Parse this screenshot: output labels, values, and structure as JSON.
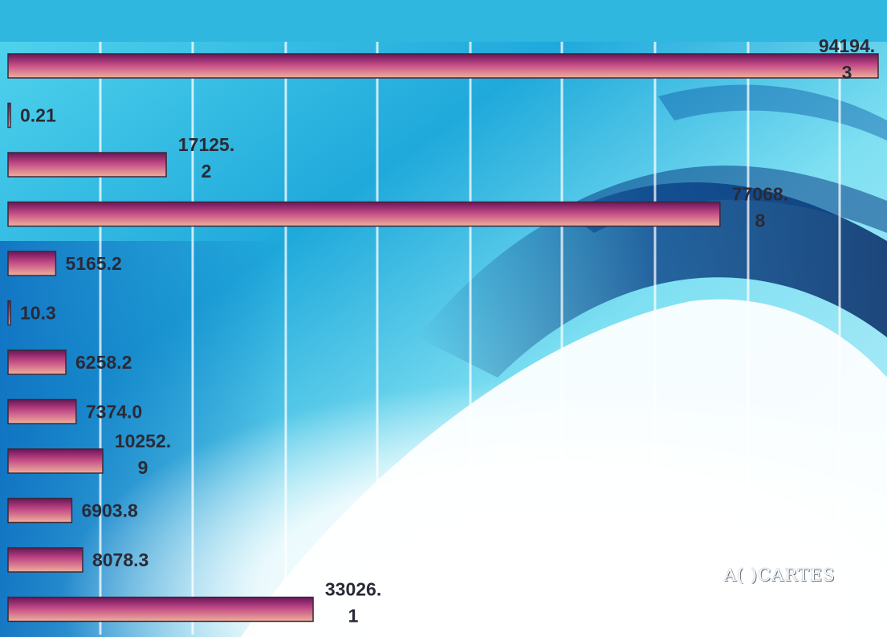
{
  "chart_data": {
    "type": "bar",
    "orientation": "horizontal",
    "categories": [],
    "values": [
      94194.3,
      0.21,
      17125.2,
      77068.8,
      5165.2,
      10.3,
      6258.2,
      7374.0,
      10252.9,
      6903.8,
      8078.3,
      33026.1
    ],
    "labels": [
      [
        "94194.",
        "3"
      ],
      [
        "0.21"
      ],
      [
        "17125.",
        "2"
      ],
      [
        "77068.",
        "8"
      ],
      [
        "5165.2"
      ],
      [
        "10.3"
      ],
      [
        "6258.2"
      ],
      [
        "7374.0"
      ],
      [
        "10252.",
        "9"
      ],
      [
        "6903.8"
      ],
      [
        "8078.3"
      ],
      [
        "33026.",
        "1"
      ]
    ],
    "xlim": [
      0,
      94194.3
    ],
    "grid": true,
    "legend": "none",
    "title": "",
    "xlabel": "",
    "ylabel": ""
  },
  "watermark": "A(  )CARTES",
  "colors": {
    "bar_dark": "#6b1459",
    "bar_mid": "#c24a86",
    "bar_light": "#f0b09a",
    "bar_border": "#3a2a3a",
    "background_cyan": "#2fc3e6",
    "background_blue": "#0b4f94",
    "label_text": "#2a2a36"
  }
}
